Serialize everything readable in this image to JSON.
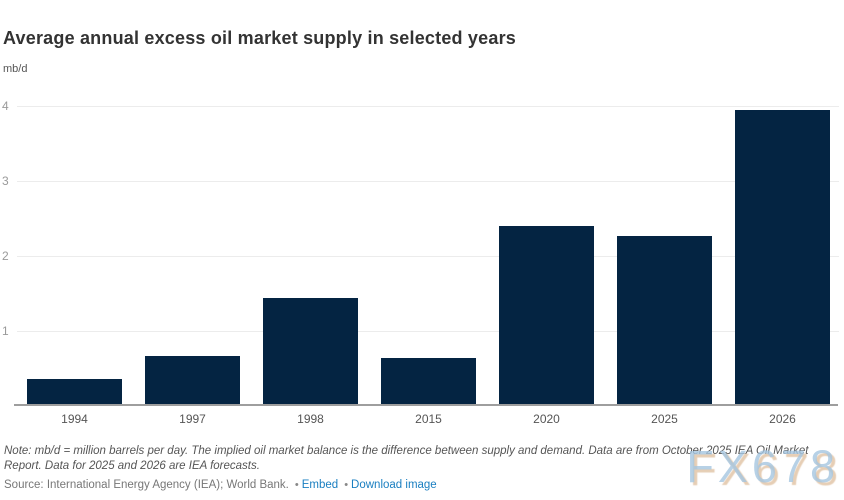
{
  "header": {
    "title": "Average annual excess oil market supply in selected years",
    "unit": "mb/d"
  },
  "chart_data": {
    "type": "bar",
    "categories": [
      "1994",
      "1997",
      "1998",
      "2015",
      "2020",
      "2025",
      "2026"
    ],
    "values": [
      0.36,
      0.67,
      1.44,
      0.64,
      2.4,
      2.27,
      3.95
    ],
    "title": "Average annual excess oil market supply in selected years",
    "xlabel": "",
    "ylabel": "mb/d",
    "ylim": [
      0,
      4
    ],
    "yticks": [
      4,
      3,
      2,
      1
    ],
    "grid": true,
    "legend": "none",
    "bar_color": "#042442"
  },
  "footer": {
    "note": "Note: mb/d = million barrels per day. The implied oil market balance is the difference between supply and demand. Data are from October 2025 IEA Oil Market Report. Data for 2025 and 2026 are IEA forecasts.",
    "source": "Source: International Energy Agency (IEA); World Bank.",
    "bullet": "•",
    "links": [
      {
        "label": "Embed"
      },
      {
        "label": "Download image"
      }
    ]
  },
  "watermark": "FX678"
}
